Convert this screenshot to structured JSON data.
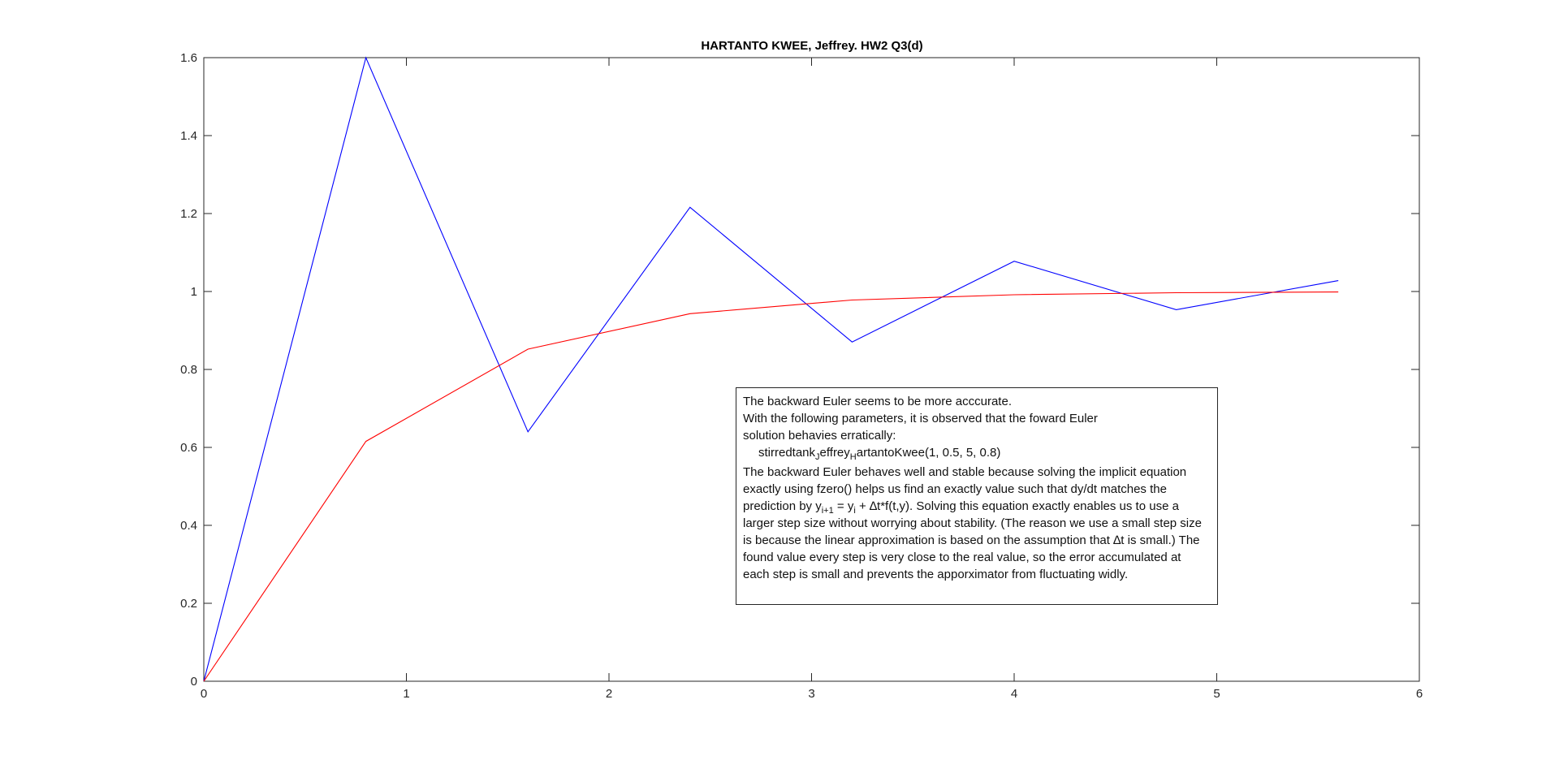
{
  "chart_data": {
    "type": "line",
    "title": "HARTANTO KWEE, Jeffrey. HW2 Q3(d)",
    "xlabel": "",
    "ylabel": "",
    "xlim": [
      0,
      6
    ],
    "ylim": [
      0,
      1.6
    ],
    "xticks": [
      "0",
      "1",
      "2",
      "3",
      "4",
      "5",
      "6"
    ],
    "yticks": [
      "0",
      "0.2",
      "0.4",
      "0.6",
      "0.8",
      "1",
      "1.2",
      "1.4",
      "1.6"
    ],
    "grid": false,
    "series": [
      {
        "color": "#0000ff",
        "x": [
          0,
          0.8,
          1.6,
          2.4,
          3.2,
          4.0,
          4.8,
          5.6
        ],
        "y": [
          0,
          1.6,
          0.64,
          1.216,
          0.8704,
          1.0778,
          0.9533,
          1.028
        ]
      },
      {
        "color": "#ff0000",
        "x": [
          0,
          0.8,
          1.6,
          2.4,
          3.2,
          4.0,
          4.8,
          5.6
        ],
        "y": [
          0,
          0.6154,
          0.8521,
          0.9431,
          0.9781,
          0.9916,
          0.9968,
          0.9988
        ]
      }
    ],
    "annotation": {
      "line1": "The backward Euler seems to be more acccurate.",
      "line2": "With the following parameters, it is observed that the foward Euler",
      "line3": "solution behavies erratically:",
      "call_a": "stirredtank",
      "call_sub1": "J",
      "call_b": "effrey",
      "call_sub2": "H",
      "call_c": "artantoKwee(1, 0.5, 5, 0.8)",
      "para_a": "The backward Euler behaves well and stable because solving the implicit equation exactly using fzero() helps us find an exactly value such that dy/dt matches the prediction by y",
      "para_sub1": "i+1",
      "para_b": " = y",
      "para_sub2": "i",
      "para_c": " + ∆t*f(t,y). Solving this equation exactly enables us to use a larger step size without worrying about stability. (The reason we use a small step size is because the linear approximation is based on the assumption that ∆t is small.) The found value every step is very close to the real value, so the error accumulated at each step is small and prevents the apporximator from fluctuating widly."
    }
  }
}
